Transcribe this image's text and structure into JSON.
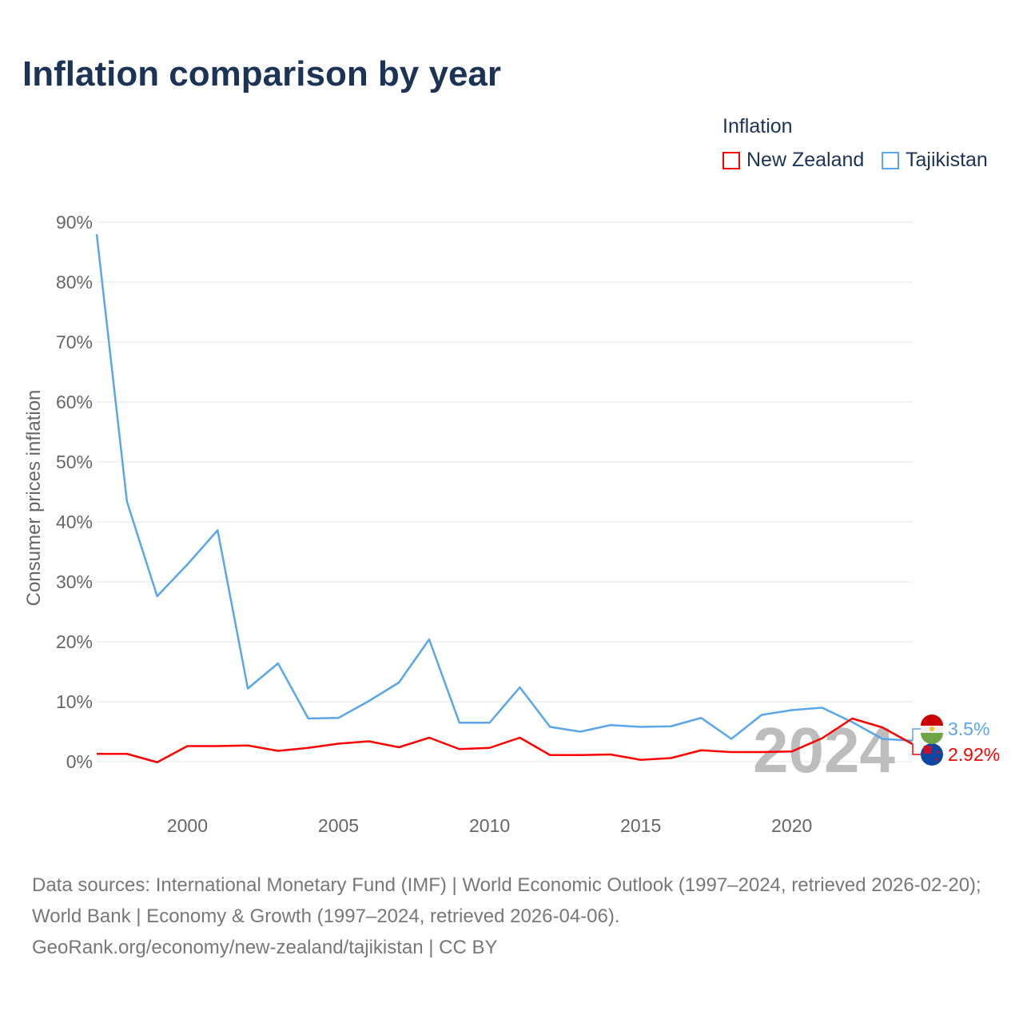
{
  "title": "Inflation comparison by year",
  "legend": {
    "title": "Inflation",
    "items": [
      {
        "label": "New Zealand",
        "color": "#ff0000"
      },
      {
        "label": "Tajikistan",
        "color": "#5aa6ea"
      }
    ]
  },
  "year_watermark": "2024",
  "footer": {
    "line1": "Data sources: International Monetary Fund (IMF) | World Economic Outlook (1997–2024, retrieved 2026-02-20); World Bank | Economy & Growth (1997–2024, retrieved 2026-04-06).",
    "line2": "GeoRank.org/economy/new-zealand/tajikistan | CC BY"
  },
  "chart_data": {
    "type": "line",
    "title": "Inflation comparison by year",
    "xlabel": "",
    "ylabel": "Consumer prices inflation",
    "xlim": [
      1997,
      2024
    ],
    "ylim": [
      0,
      90
    ],
    "xticks": [
      2000,
      2005,
      2010,
      2015,
      2020
    ],
    "yticks": [
      0,
      10,
      20,
      30,
      40,
      50,
      60,
      70,
      80,
      90
    ],
    "ytick_labels": [
      "0%",
      "10%",
      "20%",
      "30%",
      "40%",
      "50%",
      "60%",
      "70%",
      "80%",
      "90%"
    ],
    "grid": true,
    "legend_position": "top-right",
    "x": [
      1997,
      1998,
      1999,
      2000,
      2001,
      2002,
      2003,
      2004,
      2005,
      2006,
      2007,
      2008,
      2009,
      2010,
      2011,
      2012,
      2013,
      2014,
      2015,
      2016,
      2017,
      2018,
      2019,
      2020,
      2021,
      2022,
      2023,
      2024
    ],
    "series": [
      {
        "name": "New Zealand",
        "color": "#ff0000",
        "end_label": "2.92%",
        "values": [
          1.3,
          1.3,
          -0.1,
          2.6,
          2.6,
          2.7,
          1.8,
          2.3,
          3.0,
          3.4,
          2.4,
          4.0,
          2.1,
          2.3,
          4.0,
          1.1,
          1.1,
          1.2,
          0.3,
          0.6,
          1.9,
          1.6,
          1.6,
          1.7,
          3.9,
          7.2,
          5.7,
          2.92
        ]
      },
      {
        "name": "Tajikistan",
        "color": "#5aa6ea",
        "end_label": "3.5%",
        "values": [
          88.0,
          43.4,
          27.6,
          32.9,
          38.6,
          12.2,
          16.4,
          7.2,
          7.3,
          10.1,
          13.2,
          20.4,
          6.5,
          6.5,
          12.4,
          5.8,
          5.0,
          6.1,
          5.8,
          5.9,
          7.3,
          3.8,
          7.8,
          8.6,
          9.0,
          6.6,
          3.8,
          3.5
        ]
      }
    ]
  }
}
